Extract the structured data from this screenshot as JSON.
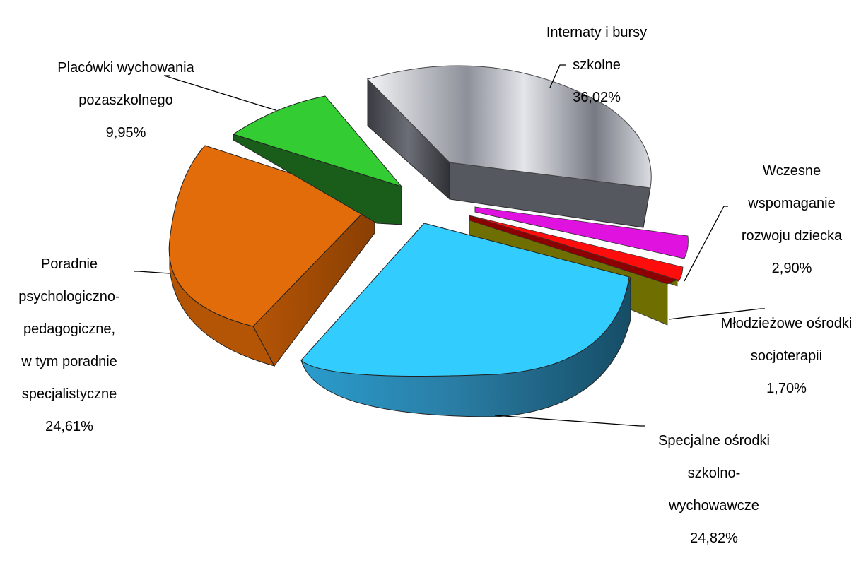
{
  "chart_data": {
    "type": "pie",
    "title": "",
    "three_d": true,
    "exploded": true,
    "legend": "none",
    "slices": [
      {
        "label": "Internaty i bursy szkolne",
        "value": 36.02,
        "value_label": "36,02%",
        "color": "#9a9ea6"
      },
      {
        "label": "Wczesne wspomaganie rozwoju dziecka",
        "value": 2.9,
        "value_label": "2,90%",
        "color": "#e012e0"
      },
      {
        "label": "Młodzieżowe ośrodki socjoterapii",
        "value": 1.7,
        "value_label": "1,70%",
        "color": "#ff0d0d"
      },
      {
        "label": "",
        "value": 0.1,
        "value_label": "",
        "color": "#8b0000"
      },
      {
        "label": "",
        "value": 0.0,
        "value_label": "",
        "color": "#6f6e00"
      },
      {
        "label": "Specjalne ośrodki szkolno-wychowawcze",
        "value": 24.82,
        "value_label": "24,82%",
        "color": "#33ccff"
      },
      {
        "label": "Poradnie psychologiczno-pedagogiczne, w tym poradnie specjalistyczne",
        "value": 24.61,
        "value_label": "24,61%",
        "color": "#e36c0a"
      },
      {
        "label": "Placówki wychowania pozaszkolnego",
        "value": 9.95,
        "value_label": "9,95%",
        "color": "#33cc33"
      }
    ],
    "labels": {
      "internaty": {
        "lines": [
          "Internaty i bursy",
          "szkolne"
        ],
        "value": "36,02%"
      },
      "wczesne": {
        "lines": [
          "Wczesne",
          "wspomaganie",
          "rozwoju dziecka"
        ],
        "value": "2,90%"
      },
      "mos": {
        "lines": [
          "Młodzieżowe ośrodki",
          "socjoterapii"
        ],
        "value": "1,70%"
      },
      "specjalne": {
        "lines": [
          "Specjalne ośrodki",
          "szkolno-",
          "wychowawcze"
        ],
        "value": "24,82%"
      },
      "poradnie": {
        "lines": [
          "Poradnie",
          "psychologiczno-",
          "pedagogiczne,",
          "w tym poradnie",
          "specjalistyczne"
        ],
        "value": "24,61%"
      },
      "placowki": {
        "lines": [
          "Placówki wychowania",
          "pozaszkolnego"
        ],
        "value": "9,95%"
      }
    }
  }
}
